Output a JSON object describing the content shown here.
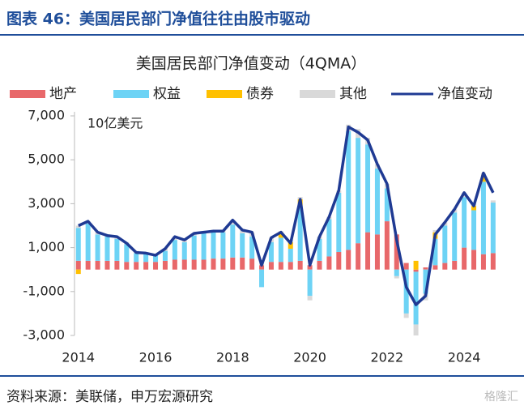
{
  "header": {
    "title": "图表 46：美国居民部门净值往往由股市驱动"
  },
  "chart_data": {
    "type": "bar",
    "stacked": true,
    "title": "美国居民部门净值变动（4QMA）",
    "unit_label": "10亿美元",
    "x": [
      2014,
      2014.25,
      2014.5,
      2014.75,
      2015,
      2015.25,
      2015.5,
      2015.75,
      2016,
      2016.25,
      2016.5,
      2016.75,
      2017,
      2017.25,
      2017.5,
      2017.75,
      2018,
      2018.25,
      2018.5,
      2018.75,
      2019,
      2019.25,
      2019.5,
      2019.75,
      2020,
      2020.25,
      2020.5,
      2020.75,
      2021,
      2021.25,
      2021.5,
      2021.75,
      2022,
      2022.25,
      2022.5,
      2022.75,
      2023,
      2023.25,
      2023.5,
      2023.75,
      2024,
      2024.25,
      2024.5,
      2024.75
    ],
    "xlim": [
      2013.9,
      2024.9
    ],
    "xticks": [
      2014,
      2016,
      2018,
      2020,
      2022,
      2024
    ],
    "ylim": [
      -3000,
      7000
    ],
    "yticks": [
      {
        "value": -3000,
        "label": "-3,000"
      },
      {
        "value": -1000,
        "label": "-1,000"
      },
      {
        "value": 1000,
        "label": "1,000"
      },
      {
        "value": 3000,
        "label": "3,000"
      },
      {
        "value": 5000,
        "label": "5,000"
      },
      {
        "value": 7000,
        "label": "7,000"
      }
    ],
    "grid": false,
    "legend": "top",
    "series": [
      {
        "name": "地产",
        "type": "bar",
        "color": "#E8686A",
        "values": [
          400,
          400,
          400,
          400,
          400,
          350,
          350,
          350,
          350,
          400,
          450,
          450,
          450,
          450,
          500,
          500,
          550,
          550,
          500,
          200,
          350,
          350,
          350,
          400,
          200,
          400,
          600,
          800,
          900,
          1200,
          1700,
          1600,
          2200,
          1600,
          300,
          -100,
          100,
          200,
          300,
          400,
          1000,
          900,
          700,
          750
        ]
      },
      {
        "name": "权益",
        "type": "bar",
        "color": "#6DD3F5",
        "values": [
          1500,
          1700,
          1200,
          1100,
          1000,
          800,
          400,
          350,
          300,
          450,
          900,
          800,
          1100,
          1200,
          1200,
          1200,
          1500,
          1100,
          1000,
          -800,
          900,
          1100,
          600,
          2500,
          -1200,
          1000,
          1700,
          2700,
          5400,
          4800,
          4000,
          3000,
          1500,
          -300,
          -2000,
          -2400,
          -1100,
          1200,
          1700,
          2200,
          2300,
          1800,
          3300,
          2300
        ]
      },
      {
        "name": "债券",
        "type": "bar",
        "color": "#FFC000",
        "values": [
          -200,
          0,
          0,
          0,
          0,
          0,
          0,
          0,
          0,
          0,
          0,
          0,
          0,
          0,
          0,
          0,
          0,
          0,
          0,
          0,
          0,
          200,
          300,
          300,
          0,
          0,
          0,
          0,
          0,
          0,
          0,
          0,
          0,
          0,
          0,
          400,
          0,
          300,
          0,
          0,
          0,
          200,
          300,
          0
        ]
      },
      {
        "name": "其他",
        "type": "bar",
        "color": "#D9D9D9",
        "values": [
          100,
          100,
          100,
          100,
          100,
          100,
          100,
          100,
          0,
          100,
          150,
          100,
          100,
          100,
          100,
          100,
          200,
          150,
          200,
          100,
          200,
          100,
          100,
          100,
          -200,
          100,
          100,
          100,
          300,
          400,
          300,
          200,
          200,
          -100,
          -200,
          -500,
          -300,
          100,
          150,
          150,
          200,
          100,
          100,
          100
        ]
      },
      {
        "name": "净值变动",
        "type": "line",
        "color": "#1F3A93",
        "values": [
          2000,
          2200,
          1700,
          1550,
          1500,
          1200,
          780,
          750,
          650,
          950,
          1500,
          1350,
          1650,
          1700,
          1750,
          1750,
          2250,
          1800,
          1700,
          200,
          1450,
          1700,
          1200,
          3200,
          200,
          1500,
          2400,
          3600,
          6500,
          6250,
          5900,
          4800,
          3900,
          1350,
          -800,
          -1600,
          -1200,
          1600,
          2150,
          2750,
          3500,
          2900,
          4400,
          3500
        ]
      }
    ]
  },
  "footer": {
    "source": "资料来源：美联储，申万宏源研究",
    "watermark": "格隆汇"
  }
}
